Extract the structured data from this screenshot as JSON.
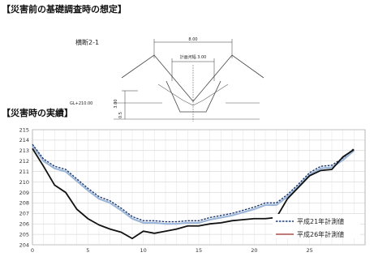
{
  "headings": {
    "pre_disaster": "【災害前の基礎調査時の想定】",
    "actual": "【災害時の実績】"
  },
  "cross_section": {
    "label": "横断2-1",
    "dim_top": "8.00",
    "dim_inner": "計画河幅 3.00",
    "dim_height": "3.00",
    "dim_depth": "0.5",
    "ground_level_label": "GL+210.00"
  },
  "chart_data": {
    "type": "line",
    "title": "",
    "xlabel": "",
    "ylabel": "",
    "xlim": [
      0,
      30
    ],
    "ylim": [
      204,
      215
    ],
    "x_ticks": [
      0,
      5,
      10,
      15,
      20,
      25
    ],
    "y_ticks": [
      204,
      205,
      206,
      207,
      208,
      209,
      210,
      211,
      212,
      213,
      214,
      215
    ],
    "grid": true,
    "legend_position": "bottom-right",
    "series": [
      {
        "name": "平成21年計測値",
        "style": "dashed",
        "color": "#1f3a73",
        "x": [
          0,
          1,
          2,
          3,
          4,
          5,
          6,
          7,
          8,
          9,
          10,
          11,
          12,
          13,
          14,
          15,
          16,
          17,
          18,
          19,
          20,
          21,
          22,
          23,
          24,
          25,
          26,
          27,
          28,
          29
        ],
        "y": [
          213.6,
          212.2,
          211.5,
          211.2,
          210.3,
          209.4,
          208.6,
          208.2,
          207.5,
          206.7,
          206.3,
          206.3,
          206.2,
          206.2,
          206.3,
          206.3,
          206.6,
          206.8,
          207.0,
          207.3,
          207.6,
          208.0,
          208.0,
          208.8,
          209.8,
          210.9,
          211.5,
          211.6,
          212.3,
          213.2
        ]
      },
      {
        "name": "平成26年計測値",
        "style": "solid",
        "color": "#111111",
        "x": [
          0,
          1,
          2,
          3,
          4,
          5,
          6,
          7,
          8,
          9,
          10,
          11,
          12,
          13,
          14,
          15,
          16,
          17,
          18,
          19,
          20,
          21,
          22,
          23,
          24,
          25,
          26,
          27,
          28,
          29
        ],
        "y": [
          213.2,
          211.5,
          209.7,
          209.0,
          207.4,
          206.5,
          205.9,
          205.5,
          205.2,
          204.6,
          205.3,
          205.1,
          205.3,
          205.5,
          205.8,
          205.8,
          206.0,
          206.1,
          206.3,
          206.4,
          206.5,
          206.5,
          206.6,
          208.4,
          209.5,
          210.6,
          211.1,
          211.2,
          212.4,
          213.1
        ]
      }
    ],
    "light_series": {
      "color": "#9bb6d8",
      "x": [
        0,
        1,
        2,
        3,
        4,
        5,
        6,
        7,
        8,
        9,
        10,
        11,
        12,
        13,
        14,
        15,
        16,
        17,
        18,
        19,
        20,
        21,
        22,
        23,
        24,
        25,
        26,
        27,
        28,
        29
      ],
      "y": [
        213.5,
        212.0,
        211.3,
        211.0,
        210.1,
        209.2,
        208.4,
        208.0,
        207.3,
        206.5,
        206.1,
        206.1,
        206.0,
        206.0,
        206.1,
        206.1,
        206.4,
        206.6,
        206.8,
        207.1,
        207.4,
        207.8,
        207.8,
        208.6,
        209.6,
        210.7,
        211.3,
        211.4,
        212.1,
        213.0
      ]
    }
  }
}
